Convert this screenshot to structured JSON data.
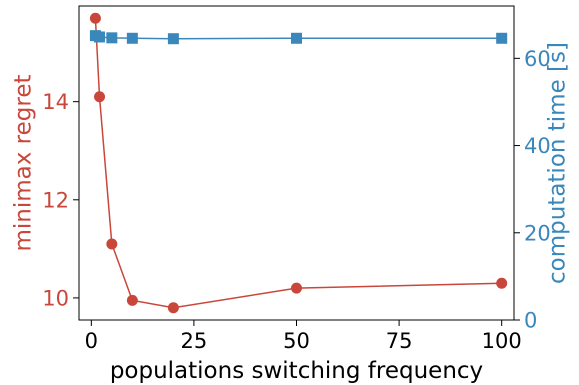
{
  "chart_data": {
    "type": "line",
    "title": "",
    "xlabel": "populations switching frequency",
    "ylabel_left": "minimax regret",
    "ylabel_right": "computation time [s]",
    "xlim": [
      -3,
      103
    ],
    "ylim_left": [
      9.55,
      15.95
    ],
    "ylim_right": [
      0,
      72
    ],
    "x_ticks": [
      0,
      25,
      50,
      75,
      100
    ],
    "y_ticks_left": [
      10,
      12,
      14
    ],
    "y_ticks_right": [
      0,
      20,
      40,
      60
    ],
    "grid": false,
    "legend": "none",
    "series": [
      {
        "axis": "left",
        "marker": "circle",
        "color": "#c9473a",
        "x": [
          1,
          2,
          5,
          10,
          20,
          50,
          100
        ],
        "values": [
          15.7,
          14.1,
          11.1,
          9.95,
          9.8,
          10.2,
          10.3
        ]
      },
      {
        "axis": "right",
        "marker": "square",
        "color": "#3a87bb",
        "x": [
          1,
          2,
          5,
          10,
          20,
          50,
          100
        ],
        "values": [
          65.2,
          64.9,
          64.7,
          64.6,
          64.5,
          64.6,
          64.6
        ]
      }
    ],
    "colors": {
      "left_axis": "#c9473a",
      "right_axis": "#3a87bb",
      "axis_line": "#000000",
      "text": "#000000"
    }
  }
}
